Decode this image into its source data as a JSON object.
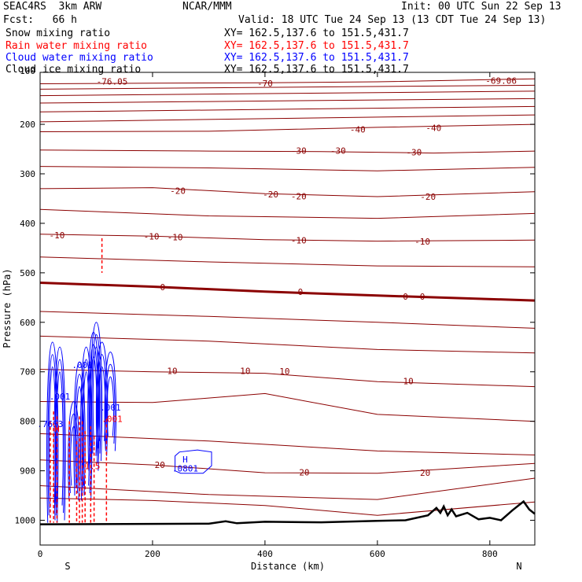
{
  "header": {
    "model": "SEAC4RS  3km ARW",
    "center": "NCAR/MMM",
    "init": "Init: 00 UTC Sun 22 Sep 13",
    "fcst": "Fcst:   66 h",
    "valid": "Valid: 18 UTC Tue 24 Sep 13 (13 CDT Tue 24 Sep 13)"
  },
  "fields": [
    {
      "label": "Snow mixing ratio",
      "xy": "XY= 162.5,137.6 to 151.5,431.7",
      "color": "#000000"
    },
    {
      "label": "Rain water mixing ratio",
      "xy": "XY= 162.5,137.6 to 151.5,431.7",
      "color": "#ff0000"
    },
    {
      "label": "Cloud water mixing ratio",
      "xy": "XY= 162.5,137.6 to 151.5,431.7",
      "color": "#0000ff"
    },
    {
      "label": "Cloud ice mixing ratio",
      "xy": "XY= 162.5,137.6 to 151.5,431.7",
      "color": "#000000"
    }
  ],
  "chart_data": {
    "type": "line",
    "xlabel": "Distance (km)",
    "ylabel": "Pressure (hPa)",
    "xlim": [
      0,
      880
    ],
    "ylim": [
      1050,
      100
    ],
    "x_ticks": [
      0,
      200,
      400,
      600,
      800
    ],
    "y_ticks": [
      200,
      300,
      400,
      500,
      600,
      700,
      800,
      900,
      1000
    ],
    "y_tick_labels": [
      "200",
      "300",
      "400",
      "500",
      "600",
      "700",
      "800",
      "900",
      "1000"
    ],
    "top_tick_label": "100",
    "start_label": "S",
    "end_label": "N",
    "temperature_color": "#8b0000",
    "temperature_contours": [
      {
        "label": "-70",
        "points": [
          [
            0,
            118
          ],
          [
            200,
            117
          ],
          [
            400,
            116
          ],
          [
            600,
            114
          ],
          [
            880,
            108
          ]
        ]
      },
      {
        "label": "",
        "points": [
          [
            0,
            129
          ],
          [
            880,
            121
          ]
        ]
      },
      {
        "label": "",
        "points": [
          [
            0,
            142
          ],
          [
            880,
            133
          ]
        ]
      },
      {
        "label": "",
        "points": [
          [
            0,
            157
          ],
          [
            880,
            148
          ]
        ]
      },
      {
        "label": "",
        "points": [
          [
            0,
            175
          ],
          [
            880,
            164
          ]
        ]
      },
      {
        "label": "",
        "points": [
          [
            0,
            195
          ],
          [
            880,
            181
          ]
        ]
      },
      {
        "label": "-40",
        "points": [
          [
            0,
            215
          ],
          [
            300,
            214
          ],
          [
            600,
            206
          ],
          [
            880,
            200
          ]
        ]
      },
      {
        "label": "-30",
        "points": [
          [
            0,
            252
          ],
          [
            300,
            254
          ],
          [
            500,
            255
          ],
          [
            700,
            258
          ],
          [
            880,
            254
          ]
        ]
      },
      {
        "label": "",
        "points": [
          [
            0,
            285
          ],
          [
            300,
            288
          ],
          [
            600,
            294
          ],
          [
            880,
            287
          ]
        ]
      },
      {
        "label": "-20",
        "points": [
          [
            0,
            330
          ],
          [
            200,
            328
          ],
          [
            400,
            340
          ],
          [
            600,
            346
          ],
          [
            880,
            336
          ]
        ]
      },
      {
        "label": "",
        "points": [
          [
            0,
            372
          ],
          [
            300,
            385
          ],
          [
            600,
            390
          ],
          [
            880,
            380
          ]
        ]
      },
      {
        "label": "-10",
        "points": [
          [
            0,
            422
          ],
          [
            200,
            426
          ],
          [
            400,
            433
          ],
          [
            600,
            436
          ],
          [
            880,
            434
          ]
        ]
      },
      {
        "label": "",
        "points": [
          [
            0,
            468
          ],
          [
            300,
            478
          ],
          [
            600,
            486
          ],
          [
            880,
            488
          ]
        ]
      },
      {
        "label": "0",
        "bold": true,
        "points": [
          [
            0,
            520
          ],
          [
            200,
            528
          ],
          [
            400,
            538
          ],
          [
            600,
            546
          ],
          [
            880,
            556
          ]
        ]
      },
      {
        "label": "",
        "points": [
          [
            0,
            578
          ],
          [
            300,
            588
          ],
          [
            600,
            600
          ],
          [
            880,
            612
          ]
        ]
      },
      {
        "label": "",
        "points": [
          [
            0,
            628
          ],
          [
            300,
            638
          ],
          [
            600,
            655
          ],
          [
            880,
            662
          ]
        ]
      },
      {
        "label": "10",
        "points": [
          [
            0,
            695
          ],
          [
            200,
            700
          ],
          [
            400,
            703
          ],
          [
            600,
            720
          ],
          [
            880,
            730
          ]
        ]
      },
      {
        "label": "",
        "points": [
          [
            0,
            760
          ],
          [
            200,
            762
          ],
          [
            400,
            744
          ],
          [
            600,
            786
          ],
          [
            880,
            800
          ]
        ]
      },
      {
        "label": "",
        "points": [
          [
            0,
            825
          ],
          [
            300,
            840
          ],
          [
            600,
            860
          ],
          [
            880,
            868
          ]
        ]
      },
      {
        "label": "20",
        "points": [
          [
            0,
            878
          ],
          [
            200,
            888
          ],
          [
            400,
            904
          ],
          [
            600,
            905
          ],
          [
            880,
            885
          ]
        ]
      },
      {
        "label": "",
        "points": [
          [
            0,
            930
          ],
          [
            300,
            948
          ],
          [
            600,
            958
          ],
          [
            880,
            915
          ]
        ]
      },
      {
        "label": "",
        "points": [
          [
            0,
            955
          ],
          [
            200,
            960
          ],
          [
            400,
            970
          ],
          [
            600,
            990
          ],
          [
            880,
            963
          ]
        ]
      }
    ],
    "contour_labels": [
      {
        "text": "-76.05",
        "x": 128,
        "y": 113
      },
      {
        "text": "-70",
        "x": 400,
        "y": 117
      },
      {
        "text": "-69.06",
        "x": 820,
        "y": 112
      },
      {
        "text": "-40",
        "x": 565,
        "y": 210
      },
      {
        "text": "-40",
        "x": 700,
        "y": 207
      },
      {
        "text": "-30",
        "x": 460,
        "y": 253
      },
      {
        "text": "-30",
        "x": 530,
        "y": 253
      },
      {
        "text": "-30",
        "x": 665,
        "y": 256
      },
      {
        "text": "-20",
        "x": 245,
        "y": 334
      },
      {
        "text": "-20",
        "x": 410,
        "y": 341
      },
      {
        "text": "-20",
        "x": 460,
        "y": 345
      },
      {
        "text": "-20",
        "x": 690,
        "y": 346
      },
      {
        "text": "-10",
        "x": 30,
        "y": 424
      },
      {
        "text": "-10",
        "x": 198,
        "y": 426
      },
      {
        "text": "-10",
        "x": 240,
        "y": 428
      },
      {
        "text": "-10",
        "x": 460,
        "y": 434
      },
      {
        "text": "-10",
        "x": 680,
        "y": 437
      },
      {
        "text": "0",
        "x": 218,
        "y": 529
      },
      {
        "text": "0",
        "x": 463,
        "y": 538
      },
      {
        "text": "0",
        "x": 650,
        "y": 548
      },
      {
        "text": "0",
        "x": 680,
        "y": 548
      },
      {
        "text": "10",
        "x": 235,
        "y": 698
      },
      {
        "text": "10",
        "x": 365,
        "y": 698
      },
      {
        "text": "10",
        "x": 435,
        "y": 699
      },
      {
        "text": "10",
        "x": 655,
        "y": 719
      },
      {
        "text": "20",
        "x": 213,
        "y": 888
      },
      {
        "text": "20",
        "x": 470,
        "y": 903
      },
      {
        "text": "20",
        "x": 685,
        "y": 904
      }
    ],
    "terrain": [
      [
        0,
        1008
      ],
      [
        300,
        1007
      ],
      [
        330,
        1002
      ],
      [
        350,
        1006
      ],
      [
        400,
        1003
      ],
      [
        500,
        1004
      ],
      [
        600,
        1001
      ],
      [
        650,
        1000
      ],
      [
        690,
        990
      ],
      [
        705,
        975
      ],
      [
        712,
        985
      ],
      [
        718,
        972
      ],
      [
        725,
        990
      ],
      [
        732,
        978
      ],
      [
        740,
        992
      ],
      [
        760,
        985
      ],
      [
        780,
        998
      ],
      [
        800,
        995
      ],
      [
        820,
        1000
      ],
      [
        840,
        980
      ],
      [
        860,
        962
      ],
      [
        870,
        978
      ],
      [
        880,
        987
      ]
    ],
    "cloud_water_color": "#0000ff",
    "rain_color": "#ff0000",
    "cloud_water_labels": [
      {
        "text": ".001",
        "x": 75,
        "y": 686
      },
      {
        "text": ".001",
        "x": 35,
        "y": 750
      },
      {
        "text": ".001",
        "x": 125,
        "y": 772
      },
      {
        "text": ".7653",
        "x": 18,
        "y": 805
      },
      {
        "text": "H",
        "x": 258,
        "y": 877
      },
      {
        "text": ".0801",
        "x": 258,
        "y": 895
      }
    ],
    "rain_labels": [
      {
        "text": ".001",
        "x": 128,
        "y": 795
      },
      {
        "text": "1.5",
        "x": 93,
        "y": 890
      },
      {
        "text": "H",
        "x": 30,
        "y": 815
      }
    ]
  }
}
